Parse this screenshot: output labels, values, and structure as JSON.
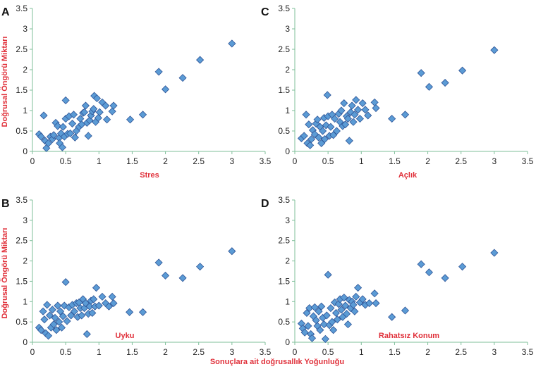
{
  "colors": {
    "accent_red": "#e0303a",
    "point_fill": "#5b9bd5",
    "point_stroke": "#2f5597",
    "axis": "#7fbf9a"
  },
  "figure": {
    "ylabel": "Doğrusal Öngörü Miktarı",
    "xlabel": "Sonuçlara ait doğrusallık Yoğunluğu"
  },
  "chart_data": [
    {
      "type": "scatter",
      "letter": "A",
      "label": "Stres",
      "xlim": [
        0,
        3.5
      ],
      "ylim": [
        0,
        3.5
      ],
      "xticks": [
        "0",
        "0.5",
        "1",
        "1.5",
        "2",
        "2.5",
        "3",
        "3.5"
      ],
      "yticks": [
        "0",
        "0.5",
        "1",
        "1.5",
        "2",
        "2.5",
        "3",
        "3.5"
      ],
      "points": [
        [
          0.1,
          0.42
        ],
        [
          0.13,
          0.36
        ],
        [
          0.17,
          0.88
        ],
        [
          0.19,
          0.26
        ],
        [
          0.21,
          0.08
        ],
        [
          0.24,
          0.2
        ],
        [
          0.27,
          0.36
        ],
        [
          0.3,
          0.3
        ],
        [
          0.32,
          0.4
        ],
        [
          0.35,
          0.7
        ],
        [
          0.38,
          0.62
        ],
        [
          0.4,
          0.33
        ],
        [
          0.41,
          0.2
        ],
        [
          0.43,
          0.44
        ],
        [
          0.45,
          0.1
        ],
        [
          0.46,
          0.6
        ],
        [
          0.48,
          0.36
        ],
        [
          0.5,
          0.8
        ],
        [
          0.5,
          1.25
        ],
        [
          0.53,
          0.43
        ],
        [
          0.55,
          0.86
        ],
        [
          0.57,
          0.44
        ],
        [
          0.6,
          0.68
        ],
        [
          0.62,
          0.9
        ],
        [
          0.64,
          0.34
        ],
        [
          0.66,
          0.5
        ],
        [
          0.7,
          0.6
        ],
        [
          0.72,
          0.8
        ],
        [
          0.74,
          0.66
        ],
        [
          0.76,
          0.94
        ],
        [
          0.78,
          0.96
        ],
        [
          0.8,
          1.12
        ],
        [
          0.82,
          0.7
        ],
        [
          0.84,
          0.38
        ],
        [
          0.86,
          0.76
        ],
        [
          0.88,
          0.88
        ],
        [
          0.9,
          0.98
        ],
        [
          0.92,
          1.04
        ],
        [
          0.93,
          1.36
        ],
        [
          0.95,
          0.72
        ],
        [
          0.97,
          1.3
        ],
        [
          0.99,
          0.82
        ],
        [
          1.01,
          0.96
        ],
        [
          1.05,
          1.2
        ],
        [
          1.1,
          1.12
        ],
        [
          1.12,
          0.78
        ],
        [
          1.2,
          0.98
        ],
        [
          1.22,
          1.12
        ],
        [
          1.47,
          0.78
        ],
        [
          1.66,
          0.9
        ],
        [
          1.9,
          1.95
        ],
        [
          2.0,
          1.52
        ],
        [
          2.26,
          1.8
        ],
        [
          2.52,
          2.24
        ],
        [
          3.0,
          2.64
        ]
      ]
    },
    {
      "type": "scatter",
      "letter": "C",
      "label": "Açlık",
      "xlim": [
        0,
        3.5
      ],
      "ylim": [
        0,
        3.5
      ],
      "xticks": [
        "0",
        "0.5",
        "1",
        "1.5",
        "2",
        "2.5",
        "3",
        "3.5"
      ],
      "yticks": [
        "0",
        "0.5",
        "1",
        "1.5",
        "2",
        "2.5",
        "3",
        "3.5"
      ],
      "points": [
        [
          0.1,
          0.32
        ],
        [
          0.14,
          0.38
        ],
        [
          0.17,
          0.9
        ],
        [
          0.19,
          0.2
        ],
        [
          0.21,
          0.66
        ],
        [
          0.23,
          0.15
        ],
        [
          0.25,
          0.3
        ],
        [
          0.27,
          0.52
        ],
        [
          0.3,
          0.42
        ],
        [
          0.32,
          0.68
        ],
        [
          0.34,
          0.78
        ],
        [
          0.36,
          0.34
        ],
        [
          0.38,
          0.6
        ],
        [
          0.4,
          0.2
        ],
        [
          0.42,
          0.5
        ],
        [
          0.44,
          0.82
        ],
        [
          0.45,
          0.3
        ],
        [
          0.47,
          0.64
        ],
        [
          0.49,
          1.38
        ],
        [
          0.5,
          0.86
        ],
        [
          0.52,
          0.38
        ],
        [
          0.54,
          0.6
        ],
        [
          0.56,
          0.9
        ],
        [
          0.58,
          0.4
        ],
        [
          0.6,
          0.8
        ],
        [
          0.63,
          0.5
        ],
        [
          0.66,
          0.92
        ],
        [
          0.68,
          0.72
        ],
        [
          0.7,
          1.0
        ],
        [
          0.72,
          0.62
        ],
        [
          0.74,
          1.18
        ],
        [
          0.76,
          0.66
        ],
        [
          0.78,
          0.86
        ],
        [
          0.8,
          0.8
        ],
        [
          0.82,
          0.26
        ],
        [
          0.84,
          0.96
        ],
        [
          0.86,
          1.12
        ],
        [
          0.88,
          0.72
        ],
        [
          0.9,
          0.9
        ],
        [
          0.92,
          1.26
        ],
        [
          0.95,
          1.02
        ],
        [
          0.98,
          0.8
        ],
        [
          1.02,
          1.18
        ],
        [
          1.06,
          1.02
        ],
        [
          1.1,
          0.88
        ],
        [
          1.2,
          1.2
        ],
        [
          1.22,
          1.06
        ],
        [
          1.46,
          0.8
        ],
        [
          1.66,
          0.9
        ],
        [
          1.9,
          1.92
        ],
        [
          2.02,
          1.58
        ],
        [
          2.26,
          1.68
        ],
        [
          2.52,
          1.98
        ],
        [
          3.0,
          2.48
        ]
      ]
    },
    {
      "type": "scatter",
      "letter": "B",
      "label": "Uyku",
      "xlim": [
        0,
        3.5
      ],
      "ylim": [
        0,
        3.5
      ],
      "xticks": [
        "0",
        "0.5",
        "1",
        "1.5",
        "2",
        "2.5",
        "3",
        "3.5"
      ],
      "yticks": [
        "0",
        "0.5",
        "1",
        "1.5",
        "2",
        "2.5",
        "3",
        "3.5"
      ],
      "points": [
        [
          0.1,
          0.36
        ],
        [
          0.13,
          0.3
        ],
        [
          0.16,
          0.76
        ],
        [
          0.18,
          0.56
        ],
        [
          0.2,
          0.22
        ],
        [
          0.22,
          0.92
        ],
        [
          0.24,
          0.16
        ],
        [
          0.26,
          0.66
        ],
        [
          0.28,
          0.36
        ],
        [
          0.3,
          0.8
        ],
        [
          0.32,
          0.44
        ],
        [
          0.34,
          0.6
        ],
        [
          0.36,
          0.3
        ],
        [
          0.38,
          0.9
        ],
        [
          0.4,
          0.5
        ],
        [
          0.42,
          0.76
        ],
        [
          0.44,
          0.36
        ],
        [
          0.46,
          0.64
        ],
        [
          0.48,
          0.9
        ],
        [
          0.5,
          1.48
        ],
        [
          0.52,
          0.52
        ],
        [
          0.55,
          0.86
        ],
        [
          0.58,
          0.66
        ],
        [
          0.6,
          0.92
        ],
        [
          0.63,
          0.76
        ],
        [
          0.66,
          0.96
        ],
        [
          0.68,
          0.62
        ],
        [
          0.7,
          0.98
        ],
        [
          0.72,
          0.84
        ],
        [
          0.74,
          0.66
        ],
        [
          0.76,
          1.06
        ],
        [
          0.78,
          0.84
        ],
        [
          0.8,
          0.96
        ],
        [
          0.82,
          0.2
        ],
        [
          0.84,
          0.7
        ],
        [
          0.86,
          0.88
        ],
        [
          0.88,
          1.02
        ],
        [
          0.9,
          0.72
        ],
        [
          0.92,
          1.06
        ],
        [
          0.94,
          0.88
        ],
        [
          0.96,
          1.34
        ],
        [
          1.0,
          0.9
        ],
        [
          1.05,
          1.12
        ],
        [
          1.1,
          0.96
        ],
        [
          1.15,
          0.88
        ],
        [
          1.2,
          1.12
        ],
        [
          1.22,
          0.96
        ],
        [
          1.46,
          0.74
        ],
        [
          1.66,
          0.74
        ],
        [
          1.9,
          1.96
        ],
        [
          2.0,
          1.64
        ],
        [
          2.26,
          1.58
        ],
        [
          2.52,
          1.86
        ],
        [
          3.0,
          2.24
        ]
      ]
    },
    {
      "type": "scatter",
      "letter": "D",
      "label": "Rahatsız Konum",
      "xlim": [
        0,
        3.5
      ],
      "ylim": [
        0,
        3.5
      ],
      "xticks": [
        "0",
        "0.5",
        "1",
        "1.5",
        "2",
        "2.5",
        "3",
        "3.5"
      ],
      "yticks": [
        "0",
        "0.5",
        "1",
        "1.5",
        "2",
        "2.5",
        "3",
        "3.5"
      ],
      "points": [
        [
          0.1,
          0.46
        ],
        [
          0.12,
          0.34
        ],
        [
          0.15,
          0.24
        ],
        [
          0.18,
          0.72
        ],
        [
          0.2,
          0.4
        ],
        [
          0.22,
          0.84
        ],
        [
          0.24,
          0.2
        ],
        [
          0.26,
          0.1
        ],
        [
          0.28,
          0.64
        ],
        [
          0.3,
          0.86
        ],
        [
          0.32,
          0.54
        ],
        [
          0.34,
          0.4
        ],
        [
          0.36,
          0.76
        ],
        [
          0.38,
          0.3
        ],
        [
          0.4,
          0.88
        ],
        [
          0.42,
          0.6
        ],
        [
          0.44,
          0.44
        ],
        [
          0.46,
          0.08
        ],
        [
          0.48,
          0.66
        ],
        [
          0.5,
          1.66
        ],
        [
          0.52,
          0.42
        ],
        [
          0.54,
          0.84
        ],
        [
          0.56,
          0.5
        ],
        [
          0.58,
          0.3
        ],
        [
          0.6,
          0.98
        ],
        [
          0.62,
          0.72
        ],
        [
          0.64,
          0.56
        ],
        [
          0.66,
          0.94
        ],
        [
          0.68,
          1.06
        ],
        [
          0.7,
          0.8
        ],
        [
          0.72,
          0.62
        ],
        [
          0.74,
          1.1
        ],
        [
          0.76,
          0.9
        ],
        [
          0.78,
          0.7
        ],
        [
          0.8,
          0.44
        ],
        [
          0.82,
          1.04
        ],
        [
          0.84,
          0.84
        ],
        [
          0.86,
          1.0
        ],
        [
          0.88,
          0.92
        ],
        [
          0.9,
          0.76
        ],
        [
          0.92,
          1.12
        ],
        [
          0.95,
          1.34
        ],
        [
          0.98,
          0.98
        ],
        [
          1.02,
          1.06
        ],
        [
          1.06,
          0.92
        ],
        [
          1.12,
          0.96
        ],
        [
          1.2,
          1.2
        ],
        [
          1.22,
          0.96
        ],
        [
          1.46,
          0.62
        ],
        [
          1.66,
          0.78
        ],
        [
          1.9,
          1.92
        ],
        [
          2.02,
          1.72
        ],
        [
          2.26,
          1.58
        ],
        [
          2.52,
          1.86
        ],
        [
          3.0,
          2.2
        ]
      ]
    }
  ]
}
